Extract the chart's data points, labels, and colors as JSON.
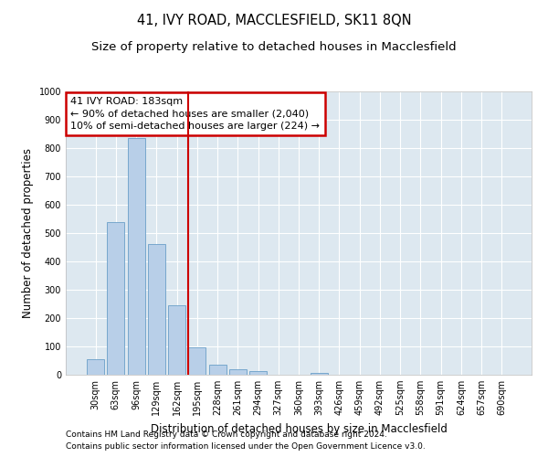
{
  "title": "41, IVY ROAD, MACCLESFIELD, SK11 8QN",
  "subtitle": "Size of property relative to detached houses in Macclesfield",
  "xlabel": "Distribution of detached houses by size in Macclesfield",
  "ylabel": "Number of detached properties",
  "footnote1": "Contains HM Land Registry data © Crown copyright and database right 2024.",
  "footnote2": "Contains public sector information licensed under the Open Government Licence v3.0.",
  "categories": [
    "30sqm",
    "63sqm",
    "96sqm",
    "129sqm",
    "162sqm",
    "195sqm",
    "228sqm",
    "261sqm",
    "294sqm",
    "327sqm",
    "360sqm",
    "393sqm",
    "426sqm",
    "459sqm",
    "492sqm",
    "525sqm",
    "558sqm",
    "591sqm",
    "624sqm",
    "657sqm",
    "690sqm"
  ],
  "values": [
    55,
    540,
    835,
    460,
    245,
    98,
    35,
    20,
    12,
    0,
    0,
    8,
    0,
    0,
    0,
    0,
    0,
    0,
    0,
    0,
    0
  ],
  "bar_color": "#b8cfe8",
  "bar_edge_color": "#6a9fc8",
  "background_color": "#dde8f0",
  "grid_color": "#ffffff",
  "vline_x": 4.55,
  "vline_color": "#cc0000",
  "annotation_text": "41 IVY ROAD: 183sqm\n← 90% of detached houses are smaller (2,040)\n10% of semi-detached houses are larger (224) →",
  "annotation_box_color": "#cc0000",
  "ylim": [
    0,
    1000
  ],
  "yticks": [
    0,
    100,
    200,
    300,
    400,
    500,
    600,
    700,
    800,
    900,
    1000
  ],
  "title_fontsize": 10.5,
  "subtitle_fontsize": 9.5,
  "label_fontsize": 8.5,
  "tick_fontsize": 7,
  "annotation_fontsize": 8,
  "footnote_fontsize": 6.5
}
